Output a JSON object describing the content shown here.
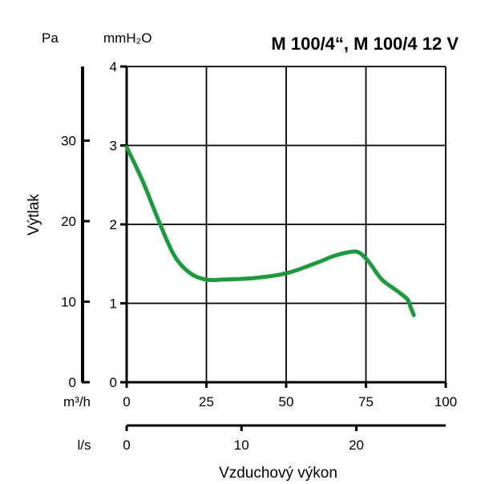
{
  "chart_data": {
    "type": "line",
    "title": "M 100/4“, M 100/4 12 V",
    "x_units": {
      "primary": "m³/h",
      "primary_ticks": [
        "0",
        "25",
        "50",
        "75",
        "100"
      ],
      "primary_range": [
        0,
        100
      ],
      "secondary": "l/s",
      "secondary_ticks": [
        "0",
        "10",
        "20"
      ],
      "secondary_range": [
        0,
        27.78
      ]
    },
    "y_units": {
      "primary": "mmH₂O",
      "primary_ticks": [
        "0",
        "1",
        "2",
        "3",
        "4"
      ],
      "primary_range": [
        0,
        4
      ],
      "secondary": "Pa",
      "secondary_ticks": [
        "0",
        "10",
        "20",
        "30"
      ],
      "secondary_range": [
        0,
        39.2
      ]
    },
    "xlabel": "Vzduchový výkon",
    "ylabel": "Výtlak",
    "grid": true,
    "series": [
      {
        "color": "#1a9c3e",
        "x": [
          0,
          5,
          10,
          15,
          20,
          25,
          30,
          40,
          50,
          60,
          65,
          70,
          73,
          76,
          80,
          85,
          88,
          89,
          90
        ],
        "y": [
          2.98,
          2.55,
          2.05,
          1.6,
          1.38,
          1.3,
          1.3,
          1.32,
          1.38,
          1.52,
          1.6,
          1.65,
          1.64,
          1.52,
          1.3,
          1.15,
          1.05,
          0.95,
          0.85
        ]
      }
    ]
  }
}
